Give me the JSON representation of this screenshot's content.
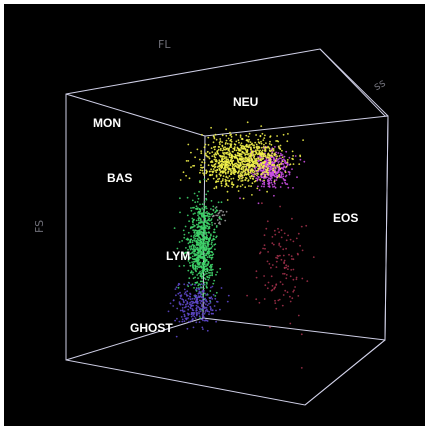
{
  "chart_data": {
    "type": "scatter",
    "subtype": "3d-cube",
    "axes": {
      "fl_label": "FL",
      "fs_label": "FS",
      "ss_label": "ss"
    },
    "background": "#000000",
    "box_color": "#cfcfe6",
    "series": [
      {
        "name": "MON",
        "color": "#c84ee0",
        "center": [
          0.42,
          0.78,
          0.9
        ],
        "spread": [
          0.05,
          0.04,
          0.04
        ],
        "count": 450
      },
      {
        "name": "NEU",
        "color": "#f2f24a",
        "center": [
          0.63,
          0.72,
          0.18
        ],
        "spread": [
          0.08,
          0.04,
          0.04
        ],
        "count": 950
      },
      {
        "name": "BAS",
        "color": "#9a9a9a",
        "center": [
          0.28,
          0.55,
          0.7
        ],
        "spread": [
          0.02,
          0.02,
          0.02
        ],
        "count": 25
      },
      {
        "name": "LYM",
        "color": "#3fd46a",
        "center": [
          0.24,
          0.42,
          0.62
        ],
        "spread": [
          0.03,
          0.1,
          0.03
        ],
        "count": 750
      },
      {
        "name": "EOS",
        "color": "#a0304a",
        "center": [
          0.84,
          0.38,
          0.1
        ],
        "spread": [
          0.05,
          0.08,
          0.05
        ],
        "count": 120
      },
      {
        "name": "GHOST",
        "color": "#5d47c8",
        "center": [
          0.12,
          0.12,
          0.78
        ],
        "spread": [
          0.05,
          0.05,
          0.04
        ],
        "count": 260
      }
    ],
    "labels": [
      {
        "text": "MON"
      },
      {
        "text": "NEU"
      },
      {
        "text": "BAS"
      },
      {
        "text": "LYM"
      },
      {
        "text": "EOS"
      },
      {
        "text": "GHOST"
      }
    ]
  }
}
